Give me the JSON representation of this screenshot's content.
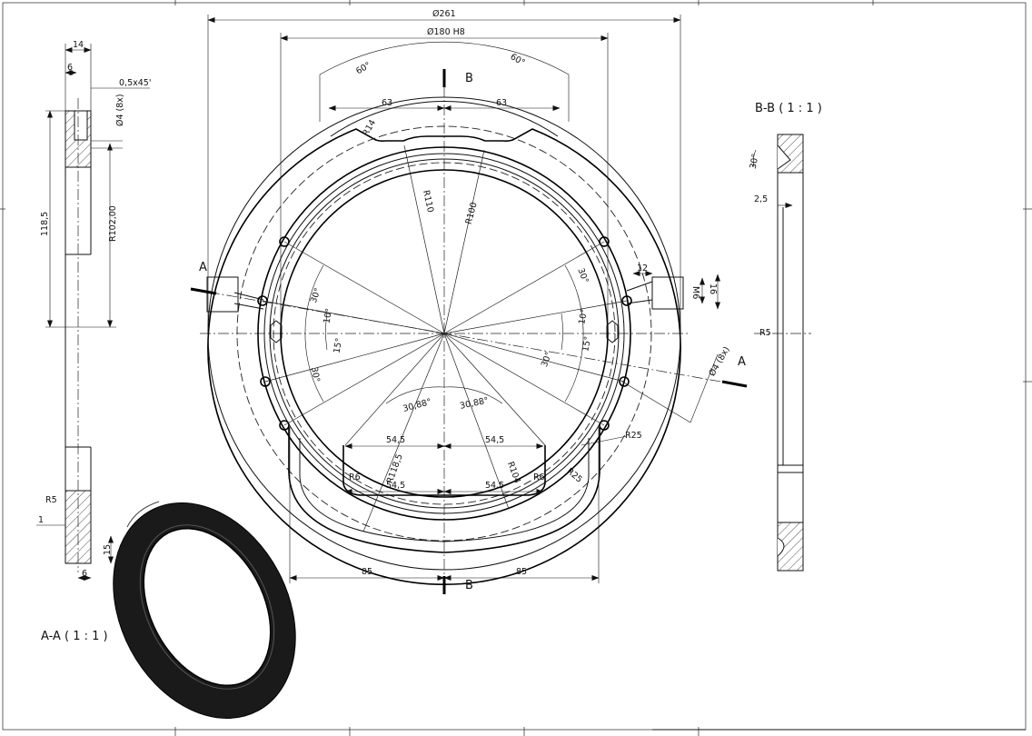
{
  "sections": {
    "aa_title": "A-A ( 1 : 1 )",
    "bb_title": "B-B ( 1 : 1 )"
  },
  "cut_markers": {
    "a": "A",
    "b": "B"
  },
  "dims": {
    "d261": "Ø261",
    "d180": "Ø180 H8",
    "ang60": "60°",
    "w63": "63",
    "r14": "R14",
    "r110": "R110",
    "r100": "R100",
    "r118": "R118,5",
    "r104": "R104",
    "r6": "R6",
    "r25": "R25",
    "ang30": "30°",
    "ang10": "10°",
    "ang15": "15°",
    "ang3088": "30,88°",
    "w545": "54,5",
    "w85": "85",
    "w12": "12",
    "m6": "M6",
    "w16": "16",
    "hole4": "Ø4 (8x)"
  },
  "aa_dims": {
    "w14": "14",
    "w6": "6",
    "chamfer": "0,5x45'",
    "hole4": "Ø4 (8x)",
    "h1185": "118,5",
    "r10200": "R102,00",
    "r5": "R5",
    "w1": "1",
    "h15": "15",
    "w6b": "6"
  },
  "bb_dims": {
    "ang30": "30°",
    "w25": "2,5",
    "r5": "R5"
  }
}
